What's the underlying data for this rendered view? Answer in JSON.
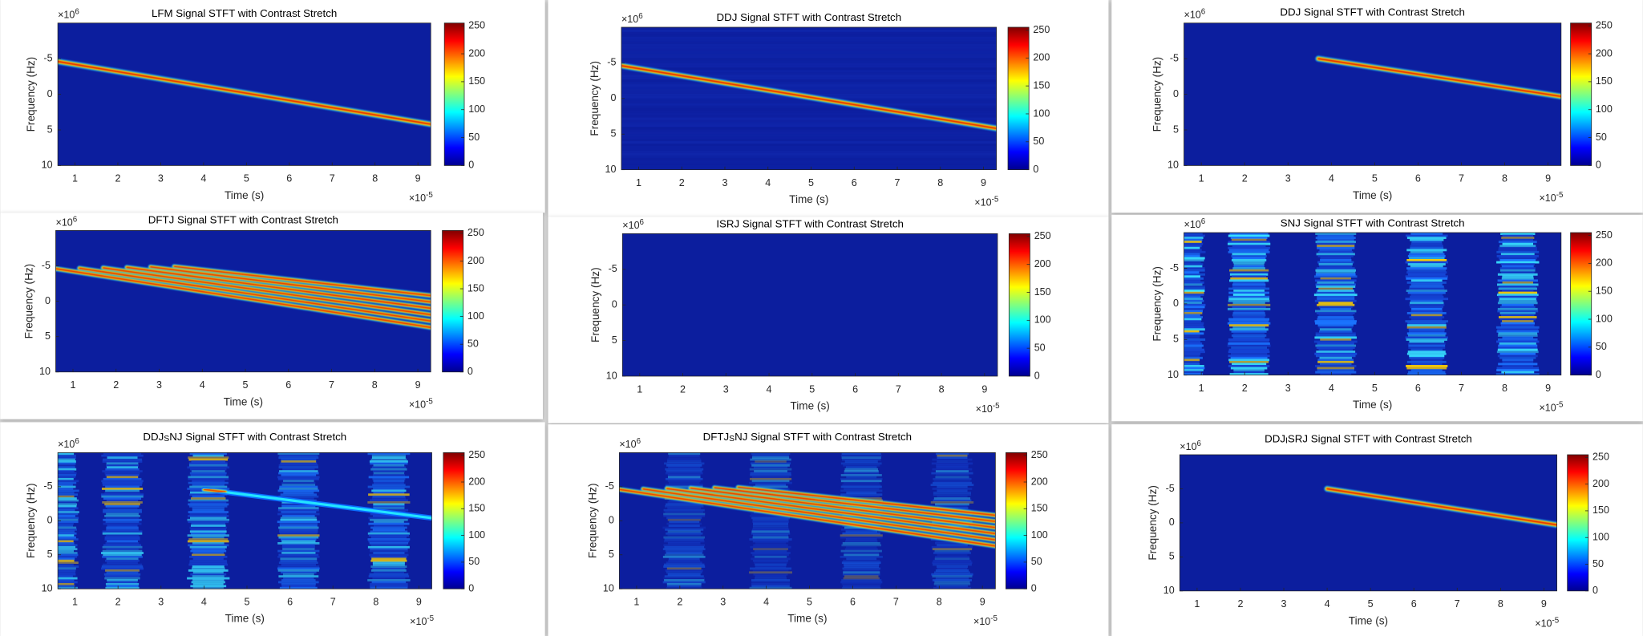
{
  "chart_data": [
    {
      "type": "heatmap",
      "title": [
        "LFM Signal STFT with Contrast Stretch"
      ],
      "x_label": "Time (s)",
      "y_label": "Frequency (Hz)",
      "x_exponent": {
        "base": "×10",
        "power": "-5"
      },
      "y_exponent": {
        "base": "×10",
        "power": "6"
      },
      "xlim": [
        0.6,
        9.3
      ],
      "xticks": [
        1,
        2,
        3,
        4,
        5,
        6,
        7,
        8,
        9
      ],
      "ylim": [
        -10,
        10
      ],
      "yticks": [
        -5,
        0,
        5,
        10
      ],
      "y_reversed": true,
      "colorbar": {
        "lim": [
          0,
          255
        ],
        "ticks": [
          0,
          50,
          100,
          150,
          200,
          250
        ],
        "colormap": "jet"
      }
    },
    {
      "type": "heatmap",
      "title": [
        "DDJ Signal STFT with Contrast Stretch"
      ],
      "x_label": "Time (s)",
      "y_label": "Frequency (Hz)",
      "x_exponent": {
        "base": "×10",
        "power": "-5"
      },
      "y_exponent": {
        "base": "×10",
        "power": "6"
      },
      "xlim": [
        0.6,
        9.3
      ],
      "xticks": [
        1,
        2,
        3,
        4,
        5,
        6,
        7,
        8,
        9
      ],
      "ylim": [
        -10,
        10
      ],
      "yticks": [
        -5,
        0,
        5,
        10
      ],
      "y_reversed": true,
      "colorbar": {
        "lim": [
          0,
          255
        ],
        "ticks": [
          0,
          50,
          100,
          150,
          200,
          250
        ],
        "colormap": "jet"
      }
    },
    {
      "type": "heatmap",
      "title": [
        "DDJ Signal STFT with Contrast Stretch"
      ],
      "x_label": "Time (s)",
      "y_label": "Frequency (Hz)",
      "x_exponent": {
        "base": "×10",
        "power": "-5"
      },
      "y_exponent": {
        "base": "×10",
        "power": "6"
      },
      "xlim": [
        0.6,
        9.3
      ],
      "xticks": [
        1,
        2,
        3,
        4,
        5,
        6,
        7,
        8,
        9
      ],
      "ylim": [
        -10,
        10
      ],
      "yticks": [
        -5,
        0,
        5,
        10
      ],
      "y_reversed": true,
      "colorbar": {
        "lim": [
          0,
          255
        ],
        "ticks": [
          0,
          50,
          100,
          150,
          200,
          250
        ],
        "colormap": "jet"
      }
    },
    {
      "type": "heatmap",
      "title": [
        "DFTJ Signal STFT with Contrast Stretch"
      ],
      "x_label": "Time (s)",
      "y_label": "Frequency (Hz)",
      "x_exponent": {
        "base": "×10",
        "power": "-5"
      },
      "y_exponent": {
        "base": "×10",
        "power": "6"
      },
      "xlim": [
        0.6,
        9.3
      ],
      "xticks": [
        1,
        2,
        3,
        4,
        5,
        6,
        7,
        8,
        9
      ],
      "ylim": [
        -10,
        10
      ],
      "yticks": [
        -5,
        0,
        5,
        10
      ],
      "y_reversed": true,
      "colorbar": {
        "lim": [
          0,
          255
        ],
        "ticks": [
          0,
          50,
          100,
          150,
          200,
          250
        ],
        "colormap": "jet"
      }
    },
    {
      "type": "heatmap",
      "title": [
        "ISRJ Signal STFT with Contrast Stretch"
      ],
      "x_label": "Time (s)",
      "y_label": "Frequency (Hz)",
      "x_exponent": {
        "base": "×10",
        "power": "-5"
      },
      "y_exponent": {
        "base": "×10",
        "power": "6"
      },
      "xlim": [
        0.6,
        9.3
      ],
      "xticks": [
        1,
        2,
        3,
        4,
        5,
        6,
        7,
        8,
        9
      ],
      "ylim": [
        -10,
        10
      ],
      "yticks": [
        -5,
        0,
        5,
        10
      ],
      "y_reversed": true,
      "colorbar": {
        "lim": [
          0,
          255
        ],
        "ticks": [
          0,
          50,
          100,
          150,
          200,
          250
        ],
        "colormap": "jet"
      }
    },
    {
      "type": "heatmap",
      "title": [
        "SNJ Signal STFT with Contrast Stretch"
      ],
      "x_label": "Time (s)",
      "y_label": "Frequency (Hz)",
      "x_exponent": {
        "base": "×10",
        "power": "-5"
      },
      "y_exponent": {
        "base": "×10",
        "power": "6"
      },
      "xlim": [
        0.6,
        9.3
      ],
      "xticks": [
        1,
        2,
        3,
        4,
        5,
        6,
        7,
        8,
        9
      ],
      "ylim": [
        -10,
        10
      ],
      "yticks": [
        -5,
        0,
        5,
        10
      ],
      "y_reversed": true,
      "colorbar": {
        "lim": [
          0,
          255
        ],
        "ticks": [
          0,
          50,
          100,
          150,
          200,
          250
        ],
        "colormap": "jet"
      }
    },
    {
      "type": "heatmap",
      "title": [
        "DDJ",
        "S",
        "NJ Signal STFT with Contrast Stretch"
      ],
      "x_label": "Time (s)",
      "y_label": "Frequency (Hz)",
      "x_exponent": {
        "base": "×10",
        "power": "-5"
      },
      "y_exponent": {
        "base": "×10",
        "power": "6"
      },
      "xlim": [
        0.6,
        9.3
      ],
      "xticks": [
        1,
        2,
        3,
        4,
        5,
        6,
        7,
        8,
        9
      ],
      "ylim": [
        -10,
        10
      ],
      "yticks": [
        -5,
        0,
        5,
        10
      ],
      "y_reversed": true,
      "colorbar": {
        "lim": [
          0,
          255
        ],
        "ticks": [
          0,
          50,
          100,
          150,
          200,
          250
        ],
        "colormap": "jet"
      }
    },
    {
      "type": "heatmap",
      "title": [
        "DFTJ",
        "S",
        "NJ Signal STFT with Contrast Stretch"
      ],
      "x_label": "Time (s)",
      "y_label": "Frequency (Hz)",
      "x_exponent": {
        "base": "×10",
        "power": "-5"
      },
      "y_exponent": {
        "base": "×10",
        "power": "6"
      },
      "xlim": [
        0.6,
        9.3
      ],
      "xticks": [
        1,
        2,
        3,
        4,
        5,
        6,
        7,
        8,
        9
      ],
      "ylim": [
        -10,
        10
      ],
      "yticks": [
        -5,
        0,
        5,
        10
      ],
      "y_reversed": true,
      "colorbar": {
        "lim": [
          0,
          255
        ],
        "ticks": [
          0,
          50,
          100,
          150,
          200,
          250
        ],
        "colormap": "jet"
      }
    },
    {
      "type": "heatmap",
      "title": [
        "DDJ",
        "I",
        "SRJ Signal STFT with Contrast Stretch"
      ],
      "x_label": "Time (s)",
      "y_label": "Frequency (Hz)",
      "x_exponent": {
        "base": "×10",
        "power": "-5"
      },
      "y_exponent": {
        "base": "×10",
        "power": "6"
      },
      "xlim": [
        0.6,
        9.3
      ],
      "xticks": [
        1,
        2,
        3,
        4,
        5,
        6,
        7,
        8,
        9
      ],
      "ylim": [
        -10,
        10
      ],
      "yticks": [
        -5,
        0,
        5,
        10
      ],
      "y_reversed": true,
      "colorbar": {
        "lim": [
          0,
          255
        ],
        "ticks": [
          0,
          50,
          100,
          150,
          200,
          250
        ],
        "colormap": "jet"
      }
    }
  ]
}
